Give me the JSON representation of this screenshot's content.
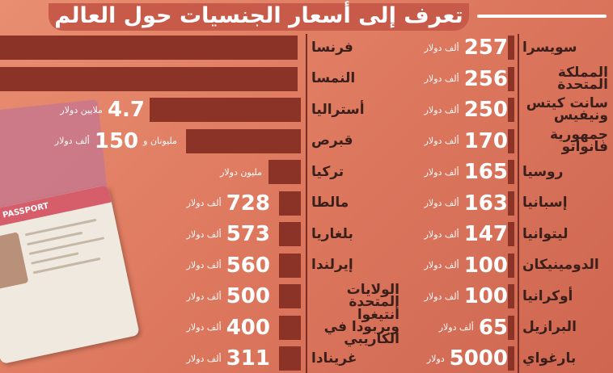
{
  "title": "تعرف إلى أسعار الجنسيات حول العالم",
  "right_column": [
    {
      "country": "سويسرا",
      "value": "257",
      "unit": "ألف دولار"
    },
    {
      "country": "المملكة المتحدة",
      "value": "256",
      "unit": "ألف دولار"
    },
    {
      "country": "سانت كيتس ونيفيس",
      "value": "250",
      "unit": "ألف دولار"
    },
    {
      "country": "جمهورية فانواتو",
      "value": "170",
      "unit": "ألف دولار"
    },
    {
      "country": "روسيا",
      "value": "165",
      "unit": "ألف دولار"
    },
    {
      "country": "إسبانيا",
      "value": "163",
      "unit": "ألف دولار"
    },
    {
      "country": "ليتوانيا",
      "value": "147",
      "unit": "ألف دولار"
    },
    {
      "country": "الدومينيكان",
      "value": "100",
      "unit": "ألف دولار"
    },
    {
      "country": "أوكرانيا",
      "value": "100",
      "unit": "ألف دولار"
    },
    {
      "country": "البرازيل",
      "value": "65",
      "unit": "ألف دولار"
    },
    {
      "country": "بارغواي",
      "value": "5000",
      "unit": "دولار"
    }
  ],
  "left_column": [
    {
      "country": "فرنسا",
      "value": "",
      "unit": ""
    },
    {
      "country": "النمسا",
      "value": "",
      "unit": ""
    },
    {
      "country": "أستراليا",
      "value": "4.7",
      "unit": "ملايين دولار"
    },
    {
      "country": "قبرص",
      "value": "150",
      "unit_before": "مليونان و",
      "unit": "ألف دولار"
    },
    {
      "country": "تركيا",
      "value": "",
      "unit": "مليون دولار"
    },
    {
      "country": "مالطا",
      "value": "728",
      "unit": "ألف دولار"
    },
    {
      "country": "بلغاريا",
      "value": "573",
      "unit": "ألف دولار"
    },
    {
      "country": "إيرلندا",
      "value": "560",
      "unit": "ألف دولار"
    },
    {
      "country": "الولايات المتحدة",
      "value": "500",
      "unit": "ألف دولار"
    },
    {
      "country": "أنتيغوا وبربودا في الكاريبي",
      "value": "400",
      "unit": "ألف دولار"
    },
    {
      "country": "غرينادا",
      "value": "311",
      "unit": "ألف دولار"
    }
  ],
  "passport_text": "PASSPORT",
  "colors": {
    "bar": "#8c3327",
    "background": "#de7a60",
    "title_bg": "#c75a48"
  }
}
